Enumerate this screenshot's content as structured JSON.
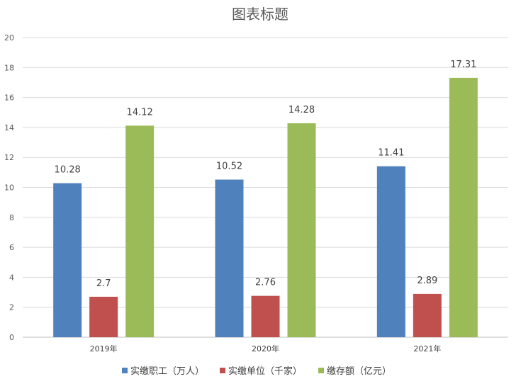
{
  "chart_data": {
    "type": "bar",
    "title": "图表标题",
    "categories": [
      "2019年",
      "2020年",
      "2021年"
    ],
    "series": [
      {
        "name": "实缴职工（万人）",
        "color": "#4f81bd",
        "values": [
          10.28,
          10.52,
          11.41
        ],
        "labels": [
          "10.28",
          "10.52",
          "11.41"
        ]
      },
      {
        "name": "实缴单位（千家）",
        "color": "#c0504d",
        "values": [
          2.7,
          2.76,
          2.89
        ],
        "labels": [
          "2.7",
          "2.76",
          "2.89"
        ]
      },
      {
        "name": "缴存额（亿元）",
        "color": "#9bbb59",
        "values": [
          14.12,
          14.28,
          17.31
        ],
        "labels": [
          "14.12",
          "14.28",
          "17.31"
        ]
      }
    ],
    "y_ticks": [
      "0",
      "2",
      "4",
      "6",
      "8",
      "10",
      "12",
      "14",
      "16",
      "18",
      "20"
    ],
    "ylim": [
      0,
      20
    ],
    "grid": true,
    "legend_position": "bottom"
  }
}
